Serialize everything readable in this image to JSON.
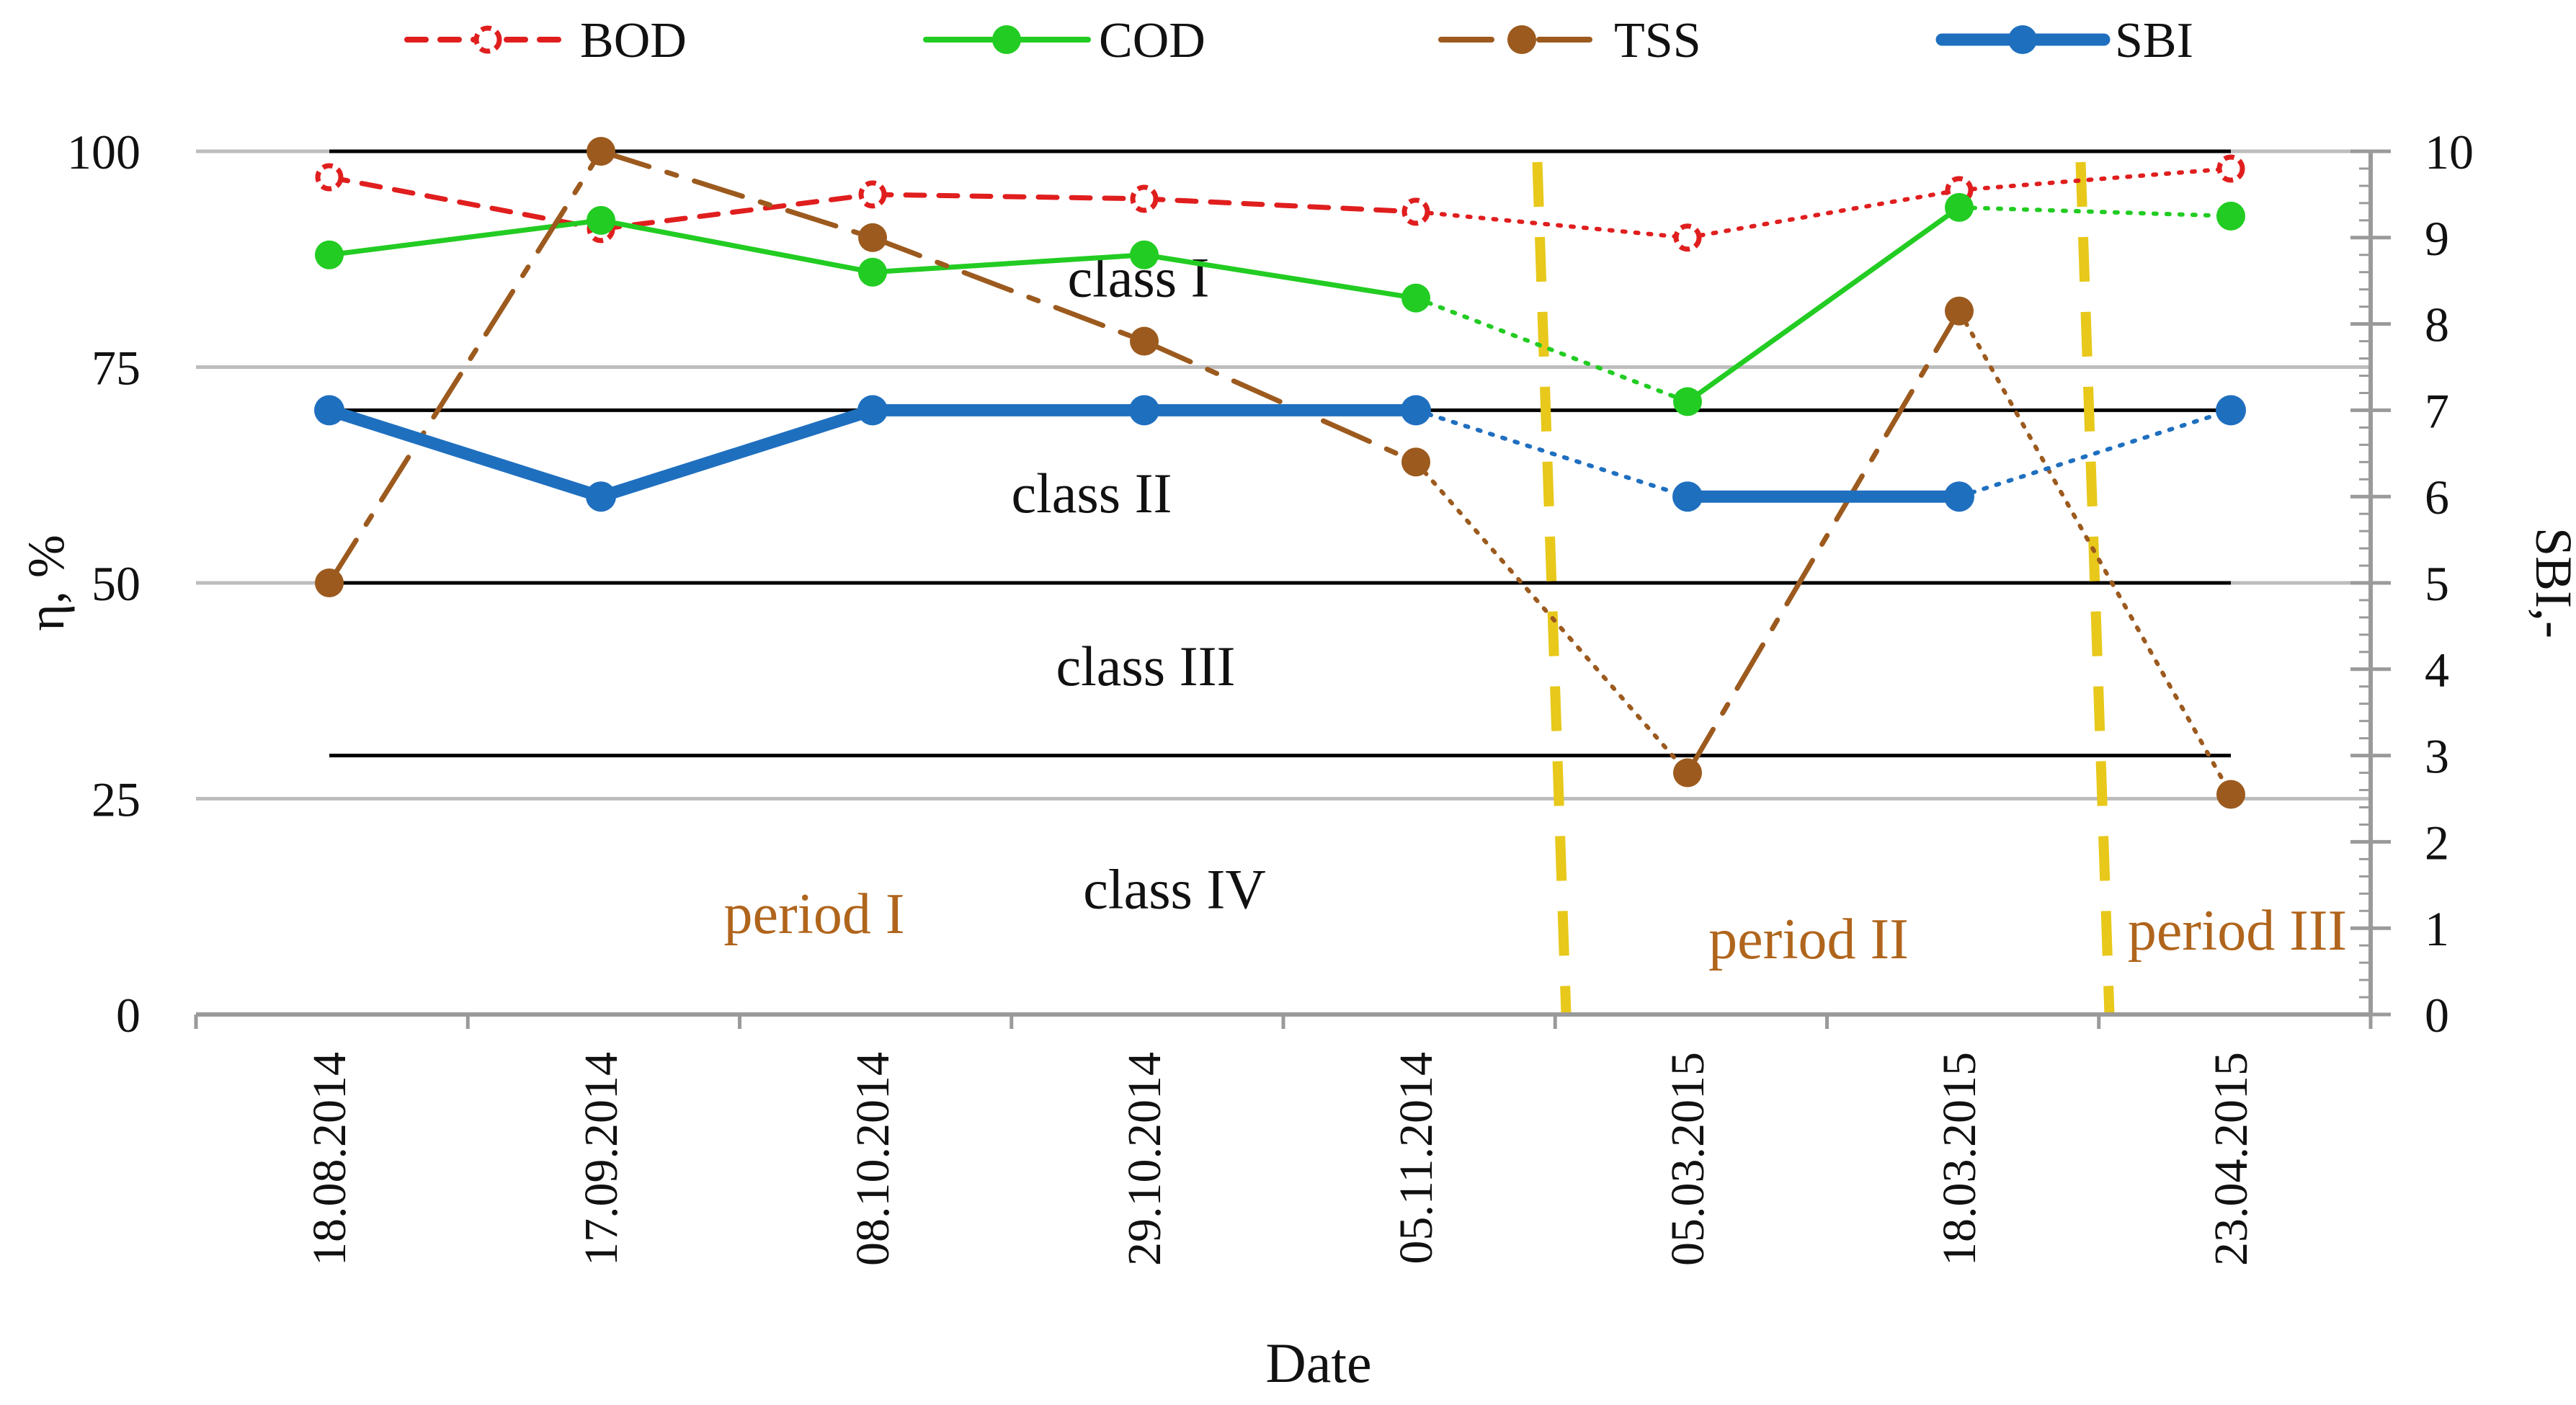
{
  "chart_data": {
    "type": "line",
    "x_label": "Date",
    "y_left_label": "η, %",
    "y_right_label": "SBI,-",
    "y_left_range": [
      0,
      100
    ],
    "y_left_ticks": [
      "0",
      "25",
      "50",
      "75",
      "100"
    ],
    "y_right_range": [
      0,
      10
    ],
    "y_right_ticks": [
      "0",
      "1",
      "2",
      "3",
      "4",
      "5",
      "6",
      "7",
      "8",
      "9",
      "10"
    ],
    "categories": [
      "18.08.2014",
      "17.09.2014",
      "08.10.2014",
      "29.10.2014",
      "05.11.2014",
      "05.03.2015",
      "18.03.2015",
      "23.04.2015"
    ],
    "series": [
      {
        "name": "BOD",
        "axis": "left",
        "color": "#e01e1e",
        "values": [
          97,
          91,
          95,
          94.5,
          93,
          90,
          95.5,
          98
        ]
      },
      {
        "name": "COD",
        "axis": "left",
        "color": "#22cc22",
        "values": [
          88,
          92,
          86,
          88,
          83,
          71,
          93.5,
          92.5
        ]
      },
      {
        "name": "TSS",
        "axis": "left",
        "color": "#9c5a1e",
        "values": [
          50,
          100,
          90,
          78,
          64,
          28,
          81.5,
          25.5
        ]
      },
      {
        "name": "SBI",
        "axis": "right",
        "color": "#1f6fbf",
        "values": [
          7,
          6,
          7,
          7,
          7,
          6,
          6,
          7
        ]
      }
    ],
    "class_boundaries_sbi": [
      10,
      7,
      5,
      3
    ],
    "class_labels": [
      "class I",
      "class II",
      "class III",
      "class IV"
    ],
    "period_dividers_after_category_index": [
      4,
      6
    ],
    "period_labels": [
      "period I",
      "period II",
      "period III"
    ],
    "legend_position": "top",
    "grid": "horizontal"
  }
}
